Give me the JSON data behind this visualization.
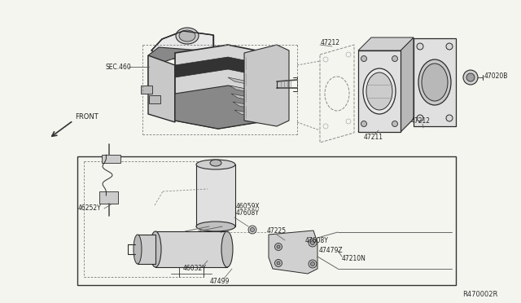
{
  "bg_color": "#f5f5f0",
  "fig_width": 6.4,
  "fig_height": 3.72,
  "dpi": 100,
  "lc": "#2a2a2a",
  "tc": "#1a1a1a",
  "fs": 5.5,
  "labels": {
    "SEC460": "SEC.460",
    "47020B": "47020B",
    "47212a": "47212",
    "47212b": "47212",
    "47211": "47211",
    "46252Y": "46252Y",
    "46059X": "46059X",
    "47608Ya": "47608Y",
    "47225": "47225",
    "47608Yb": "47608Y",
    "47479Z": "47479Z",
    "47210N": "47210N",
    "46032Y": "46032Y",
    "47499": "47499",
    "R470002R": "R470002R",
    "FRONT": "FRONT"
  }
}
